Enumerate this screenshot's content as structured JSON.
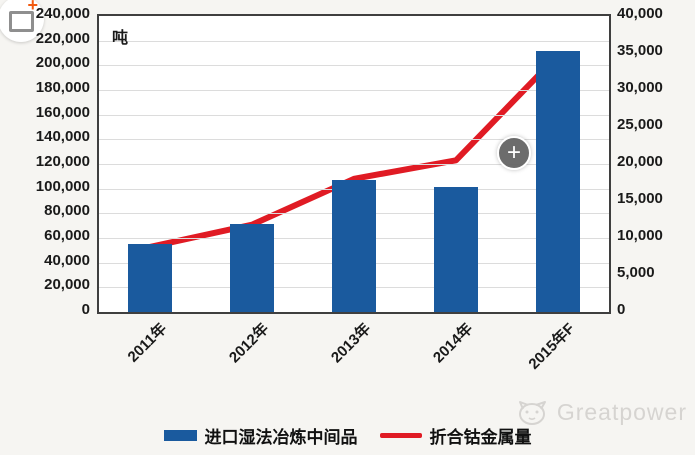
{
  "page": {
    "background": "#f6f5f2"
  },
  "overlay": {
    "zoom_plus_glyph": "+"
  },
  "watermark": {
    "brand": "Greatpower"
  },
  "chart_data": {
    "type": "bar",
    "combo": "bar+line",
    "unit_label": "吨",
    "categories": [
      "2011年",
      "2012年",
      "2013年",
      "2014年",
      "2015年F"
    ],
    "series": [
      {
        "name": "进口湿法冶炼中间品",
        "type": "bar",
        "axis": "left",
        "color": "#1a5a9e",
        "values": [
          55000,
          71000,
          107000,
          101000,
          212000
        ]
      },
      {
        "name": "折合钴金属量",
        "type": "line",
        "axis": "right",
        "color": "#e01b24",
        "values": [
          8800,
          11800,
          18000,
          20500,
          34700
        ]
      }
    ],
    "left_axis": {
      "min": 0,
      "max": 240000,
      "step": 20000,
      "tick_labels": [
        "240,000",
        "220,000",
        "200,000",
        "180,000",
        "160,000",
        "140,000",
        "120,000",
        "100,000",
        "80,000",
        "60,000",
        "40,000",
        "20,000",
        "0"
      ]
    },
    "right_axis": {
      "min": 0,
      "max": 40000,
      "step": 5000,
      "tick_labels": [
        "40,000",
        "35,000",
        "30,000",
        "25,000",
        "20,000",
        "15,000",
        "10,000",
        "5,000",
        "0"
      ]
    },
    "grid": true,
    "legend_position": "bottom"
  }
}
